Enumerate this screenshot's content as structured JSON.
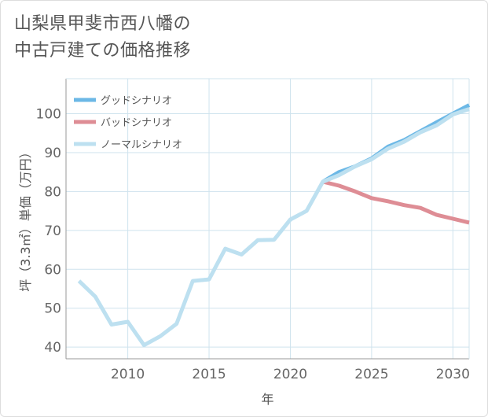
{
  "title": "山梨県甲斐市西八幡の\n中古戸建ての価格推移",
  "colors": {
    "good": "#6cb8e6",
    "bad": "#de8d95",
    "normal": "#bde0f0",
    "grid": "#cfe3ee",
    "axis": "#999999"
  },
  "chart_data": {
    "type": "line",
    "title": "山梨県甲斐市西八幡の中古戸建ての価格推移",
    "xlabel": "年",
    "ylabel": "坪（3.3㎡）単価（万円）",
    "xlim": [
      2006.2,
      2031
    ],
    "ylim": [
      37,
      109
    ],
    "xticks": [
      2010,
      2015,
      2020,
      2025,
      2030
    ],
    "yticks": [
      40,
      50,
      60,
      70,
      80,
      90,
      100
    ],
    "legend_position": "top-left",
    "grid": true,
    "series": [
      {
        "name": "グッドシナリオ",
        "color_key": "good",
        "x": [
          2022,
          2023,
          2024,
          2025,
          2026,
          2027,
          2028,
          2029,
          2030,
          2031
        ],
        "y": [
          82.5,
          85.0,
          86.5,
          88.5,
          91.5,
          93.2,
          95.5,
          97.8,
          100.0,
          102.2
        ]
      },
      {
        "name": "バッドシナリオ",
        "color_key": "bad",
        "x": [
          2022,
          2023,
          2024,
          2025,
          2026,
          2027,
          2028,
          2029,
          2030,
          2031
        ],
        "y": [
          82.5,
          81.5,
          80.0,
          78.3,
          77.5,
          76.5,
          75.8,
          74.0,
          73.0,
          72.0
        ]
      },
      {
        "name": "ノーマルシナリオ",
        "color_key": "normal",
        "x": [
          2007,
          2008,
          2009,
          2010,
          2011,
          2012,
          2013,
          2014,
          2015,
          2016,
          2017,
          2018,
          2019,
          2020,
          2021,
          2022,
          2023,
          2024,
          2025,
          2026,
          2027,
          2028,
          2029,
          2030,
          2031
        ],
        "y": [
          57.0,
          53.0,
          45.8,
          46.5,
          40.5,
          42.8,
          46.0,
          57.0,
          57.4,
          65.3,
          63.8,
          67.5,
          67.6,
          72.8,
          75.0,
          82.5,
          84.2,
          86.5,
          88.3,
          91.0,
          92.8,
          95.2,
          97.0,
          99.8,
          101.2
        ]
      }
    ]
  }
}
